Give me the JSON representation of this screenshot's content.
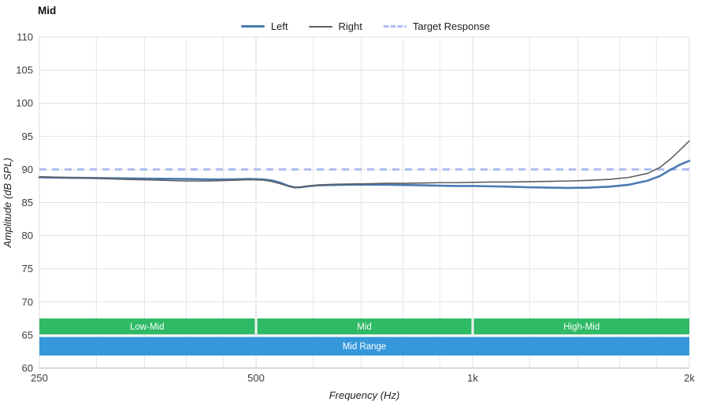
{
  "chart_data": {
    "type": "line",
    "title": "Mid",
    "xlabel": "Frequency (Hz)",
    "ylabel": "Amplitude (dB SPL)",
    "x_scale": "log",
    "xlim": [
      250,
      2000
    ],
    "x_major_ticks": [
      {
        "value": 250,
        "label": "250"
      },
      {
        "value": 500,
        "label": "500"
      },
      {
        "value": 1000,
        "label": "1k"
      },
      {
        "value": 2000,
        "label": "2k"
      }
    ],
    "x_minor_gridlines": [
      300,
      350,
      400,
      450,
      600,
      700,
      800,
      900,
      1200,
      1400,
      1600,
      1800
    ],
    "ylim": [
      60,
      110
    ],
    "y_tick_step": 5,
    "grid": true,
    "legend_position": "top-center",
    "target": {
      "name": "Target Response",
      "value": 90,
      "color": "#aebdf2",
      "width": 3,
      "dash": "9 7"
    },
    "series": [
      {
        "name": "Left",
        "color": "#4a7ab2",
        "width": 2.6,
        "points": [
          [
            250,
            88.8
          ],
          [
            270,
            88.75
          ],
          [
            300,
            88.7
          ],
          [
            330,
            88.65
          ],
          [
            360,
            88.6
          ],
          [
            400,
            88.55
          ],
          [
            430,
            88.5
          ],
          [
            460,
            88.5
          ],
          [
            490,
            88.55
          ],
          [
            510,
            88.5
          ],
          [
            525,
            88.35
          ],
          [
            540,
            88.0
          ],
          [
            555,
            87.5
          ],
          [
            565,
            87.3
          ],
          [
            575,
            87.3
          ],
          [
            590,
            87.45
          ],
          [
            610,
            87.6
          ],
          [
            640,
            87.65
          ],
          [
            680,
            87.7
          ],
          [
            720,
            87.7
          ],
          [
            760,
            87.7
          ],
          [
            800,
            87.65
          ],
          [
            850,
            87.6
          ],
          [
            900,
            87.55
          ],
          [
            950,
            87.5
          ],
          [
            1000,
            87.5
          ],
          [
            1060,
            87.45
          ],
          [
            1120,
            87.4
          ],
          [
            1200,
            87.3
          ],
          [
            1280,
            87.25
          ],
          [
            1360,
            87.2
          ],
          [
            1450,
            87.25
          ],
          [
            1550,
            87.4
          ],
          [
            1650,
            87.7
          ],
          [
            1750,
            88.3
          ],
          [
            1820,
            89.0
          ],
          [
            1880,
            89.9
          ],
          [
            1940,
            90.7
          ],
          [
            2000,
            91.3
          ]
        ]
      },
      {
        "name": "Right",
        "color": "#5e5e5e",
        "width": 1.6,
        "points": [
          [
            250,
            88.9
          ],
          [
            270,
            88.8
          ],
          [
            300,
            88.65
          ],
          [
            330,
            88.5
          ],
          [
            360,
            88.4
          ],
          [
            400,
            88.25
          ],
          [
            430,
            88.25
          ],
          [
            460,
            88.35
          ],
          [
            490,
            88.45
          ],
          [
            510,
            88.4
          ],
          [
            525,
            88.2
          ],
          [
            540,
            87.85
          ],
          [
            555,
            87.45
          ],
          [
            565,
            87.25
          ],
          [
            575,
            87.3
          ],
          [
            590,
            87.5
          ],
          [
            610,
            87.65
          ],
          [
            640,
            87.75
          ],
          [
            680,
            87.8
          ],
          [
            720,
            87.85
          ],
          [
            760,
            87.9
          ],
          [
            800,
            87.9
          ],
          [
            850,
            87.95
          ],
          [
            900,
            88.0
          ],
          [
            950,
            88.0
          ],
          [
            1000,
            88.05
          ],
          [
            1060,
            88.1
          ],
          [
            1120,
            88.1
          ],
          [
            1200,
            88.15
          ],
          [
            1280,
            88.2
          ],
          [
            1360,
            88.25
          ],
          [
            1450,
            88.35
          ],
          [
            1550,
            88.5
          ],
          [
            1650,
            88.8
          ],
          [
            1750,
            89.4
          ],
          [
            1820,
            90.3
          ],
          [
            1880,
            91.5
          ],
          [
            1940,
            92.9
          ],
          [
            2000,
            94.3
          ]
        ]
      }
    ],
    "bands": [
      {
        "label": "Low-Mid",
        "x_from": 250,
        "x_to": 500,
        "y_from": 65.1,
        "y_to": 67.5,
        "color": "#2fba66"
      },
      {
        "label": "Mid",
        "x_from": 500,
        "x_to": 1000,
        "y_from": 65.1,
        "y_to": 67.5,
        "color": "#2fba66"
      },
      {
        "label": "High-Mid",
        "x_from": 1000,
        "x_to": 2000,
        "y_from": 65.1,
        "y_to": 67.5,
        "color": "#2fba66"
      },
      {
        "label": "Mid Range",
        "x_from": 250,
        "x_to": 2000,
        "y_from": 61.9,
        "y_to": 64.7,
        "color": "#3498db"
      }
    ]
  }
}
